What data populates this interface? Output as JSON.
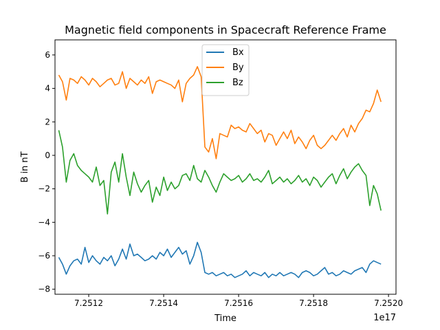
{
  "chart_data": {
    "type": "line",
    "title": "Magnetic field components in Spacecraft Reference Frame",
    "xlabel": "Time",
    "ylabel": "B in nT",
    "x_offset_label": "1e17",
    "xlim": [
      7.25111,
      7.25202
    ],
    "ylim": [
      -8.3,
      6.9
    ],
    "x_ticks": [
      7.2512,
      7.2514,
      7.2516,
      7.2518,
      7.252
    ],
    "x_tick_labels": [
      "7.2512",
      "7.2514",
      "7.2516",
      "7.2518",
      "7.2520"
    ],
    "y_ticks": [
      -8,
      -6,
      -4,
      -2,
      0,
      2,
      4,
      6
    ],
    "y_tick_labels": [
      "−8",
      "−6",
      "−4",
      "−2",
      "0",
      "2",
      "4",
      "6"
    ],
    "legend_position": "top-center",
    "grid": false,
    "series": [
      {
        "name": "Bx",
        "color": "#1f77b4",
        "x": [
          7.25112,
          7.25113,
          7.25114,
          7.25115,
          7.25116,
          7.25117,
          7.25118,
          7.25119,
          7.2512,
          7.25121,
          7.25122,
          7.25123,
          7.25124,
          7.25125,
          7.25126,
          7.25127,
          7.25128,
          7.25129,
          7.2513,
          7.25131,
          7.25132,
          7.25133,
          7.25134,
          7.25135,
          7.25136,
          7.25137,
          7.25138,
          7.25139,
          7.2514,
          7.25141,
          7.25142,
          7.25143,
          7.25144,
          7.25145,
          7.25146,
          7.25147,
          7.25148,
          7.25149,
          7.2515,
          7.25151,
          7.25152,
          7.25153,
          7.25154,
          7.25155,
          7.25156,
          7.25157,
          7.25158,
          7.25159,
          7.2516,
          7.25161,
          7.25162,
          7.25163,
          7.25164,
          7.25165,
          7.25166,
          7.25167,
          7.25168,
          7.25169,
          7.2517,
          7.25171,
          7.25172,
          7.25173,
          7.25174,
          7.25175,
          7.25176,
          7.25177,
          7.25178,
          7.25179,
          7.2518,
          7.25181,
          7.25182,
          7.25183,
          7.25184,
          7.25185,
          7.25186,
          7.25187,
          7.25188,
          7.25189,
          7.2519,
          7.25191,
          7.25192,
          7.25193,
          7.25194,
          7.25195,
          7.25196,
          7.25197,
          7.25198
        ],
        "values": [
          -6.1,
          -6.5,
          -7.1,
          -6.6,
          -6.3,
          -6.2,
          -6.5,
          -5.5,
          -6.4,
          -6.0,
          -6.3,
          -6.5,
          -6.1,
          -6.3,
          -6.0,
          -6.6,
          -6.2,
          -5.6,
          -6.2,
          -5.3,
          -6.0,
          -5.9,
          -6.1,
          -6.3,
          -6.2,
          -6.0,
          -6.2,
          -5.8,
          -6.0,
          -5.6,
          -6.1,
          -5.8,
          -5.5,
          -5.9,
          -5.7,
          -6.5,
          -6.0,
          -5.2,
          -5.8,
          -7.0,
          -7.1,
          -7.0,
          -7.2,
          -7.1,
          -7.0,
          -7.2,
          -7.1,
          -7.3,
          -7.2,
          -7.1,
          -6.9,
          -7.2,
          -7.0,
          -7.1,
          -7.2,
          -7.0,
          -7.3,
          -7.1,
          -7.2,
          -7.0,
          -7.2,
          -7.1,
          -7.0,
          -7.1,
          -7.3,
          -7.0,
          -6.9,
          -7.0,
          -7.2,
          -7.1,
          -6.9,
          -6.7,
          -7.1,
          -7.0,
          -7.2,
          -7.1,
          -6.9,
          -7.0,
          -7.1,
          -6.9,
          -6.8,
          -6.7,
          -7.0,
          -6.5,
          -6.3,
          -6.4,
          -6.5
        ]
      },
      {
        "name": "By",
        "color": "#ff7f0e",
        "x": [
          7.25112,
          7.25113,
          7.25114,
          7.25115,
          7.25116,
          7.25117,
          7.25118,
          7.25119,
          7.2512,
          7.25121,
          7.25122,
          7.25123,
          7.25124,
          7.25125,
          7.25126,
          7.25127,
          7.25128,
          7.25129,
          7.2513,
          7.25131,
          7.25132,
          7.25133,
          7.25134,
          7.25135,
          7.25136,
          7.25137,
          7.25138,
          7.25139,
          7.2514,
          7.25141,
          7.25142,
          7.25143,
          7.25144,
          7.25145,
          7.25146,
          7.25147,
          7.25148,
          7.25149,
          7.2515,
          7.25151,
          7.25152,
          7.25153,
          7.25154,
          7.25155,
          7.25156,
          7.25157,
          7.25158,
          7.25159,
          7.2516,
          7.25161,
          7.25162,
          7.25163,
          7.25164,
          7.25165,
          7.25166,
          7.25167,
          7.25168,
          7.25169,
          7.2517,
          7.25171,
          7.25172,
          7.25173,
          7.25174,
          7.25175,
          7.25176,
          7.25177,
          7.25178,
          7.25179,
          7.2518,
          7.25181,
          7.25182,
          7.25183,
          7.25184,
          7.25185,
          7.25186,
          7.25187,
          7.25188,
          7.25189,
          7.2519,
          7.25191,
          7.25192,
          7.25193,
          7.25194,
          7.25195,
          7.25196,
          7.25197,
          7.25198
        ],
        "values": [
          4.8,
          4.4,
          3.3,
          4.6,
          4.5,
          4.3,
          4.7,
          4.5,
          4.2,
          4.6,
          4.4,
          4.1,
          4.3,
          4.5,
          4.6,
          4.2,
          4.3,
          5.0,
          4.0,
          4.6,
          4.4,
          4.2,
          4.5,
          4.3,
          4.7,
          3.7,
          4.4,
          4.5,
          4.4,
          4.3,
          4.2,
          4.0,
          4.5,
          3.2,
          4.3,
          4.6,
          4.8,
          5.3,
          4.7,
          0.5,
          0.2,
          1.0,
          -0.2,
          1.3,
          1.2,
          1.1,
          1.8,
          1.6,
          1.7,
          1.5,
          1.4,
          1.9,
          1.6,
          1.3,
          1.5,
          0.8,
          1.3,
          1.2,
          0.6,
          1.0,
          1.4,
          1.0,
          1.5,
          0.7,
          1.1,
          0.8,
          0.4,
          0.9,
          1.2,
          0.6,
          0.4,
          0.6,
          0.9,
          1.2,
          0.9,
          1.3,
          1.6,
          1.1,
          1.8,
          1.4,
          1.9,
          2.2,
          2.7,
          2.6,
          3.1,
          3.9,
          3.2
        ]
      },
      {
        "name": "Bz",
        "color": "#2ca02c",
        "x": [
          7.25112,
          7.25113,
          7.25114,
          7.25115,
          7.25116,
          7.25117,
          7.25118,
          7.25119,
          7.2512,
          7.25121,
          7.25122,
          7.25123,
          7.25124,
          7.25125,
          7.25126,
          7.25127,
          7.25128,
          7.25129,
          7.2513,
          7.25131,
          7.25132,
          7.25133,
          7.25134,
          7.25135,
          7.25136,
          7.25137,
          7.25138,
          7.25139,
          7.2514,
          7.25141,
          7.25142,
          7.25143,
          7.25144,
          7.25145,
          7.25146,
          7.25147,
          7.25148,
          7.25149,
          7.2515,
          7.25151,
          7.25152,
          7.25153,
          7.25154,
          7.25155,
          7.25156,
          7.25157,
          7.25158,
          7.25159,
          7.2516,
          7.25161,
          7.25162,
          7.25163,
          7.25164,
          7.25165,
          7.25166,
          7.25167,
          7.25168,
          7.25169,
          7.2517,
          7.25171,
          7.25172,
          7.25173,
          7.25174,
          7.25175,
          7.25176,
          7.25177,
          7.25178,
          7.25179,
          7.2518,
          7.25181,
          7.25182,
          7.25183,
          7.25184,
          7.25185,
          7.25186,
          7.25187,
          7.25188,
          7.25189,
          7.2519,
          7.25191,
          7.25192,
          7.25193,
          7.25194,
          7.25195,
          7.25196,
          7.25197,
          7.25198
        ],
        "values": [
          1.5,
          0.5,
          -1.6,
          -0.3,
          0.1,
          -0.6,
          -0.9,
          -1.1,
          -1.3,
          -1.6,
          -0.7,
          -1.8,
          -1.5,
          -3.5,
          -1.0,
          -0.4,
          -1.6,
          0.1,
          -1.3,
          -2.4,
          -1.0,
          -1.7,
          -2.2,
          -1.8,
          -1.5,
          -2.8,
          -1.9,
          -2.4,
          -1.3,
          -2.1,
          -1.6,
          -2.0,
          -1.8,
          -1.2,
          -1.1,
          -1.5,
          -0.6,
          -1.4,
          -1.6,
          -0.9,
          -1.3,
          -1.8,
          -2.2,
          -1.6,
          -1.1,
          -1.3,
          -1.5,
          -1.4,
          -1.2,
          -1.6,
          -1.4,
          -1.1,
          -1.5,
          -1.4,
          -1.6,
          -1.3,
          -0.9,
          -1.7,
          -1.5,
          -1.3,
          -1.6,
          -1.4,
          -1.7,
          -1.5,
          -1.2,
          -1.6,
          -1.4,
          -1.8,
          -1.3,
          -1.5,
          -1.9,
          -1.6,
          -1.3,
          -1.1,
          -1.7,
          -1.2,
          -0.8,
          -1.4,
          -1.0,
          -0.7,
          -0.5,
          -0.9,
          -1.2,
          -3.0,
          -1.8,
          -2.3,
          -3.3
        ]
      }
    ]
  }
}
